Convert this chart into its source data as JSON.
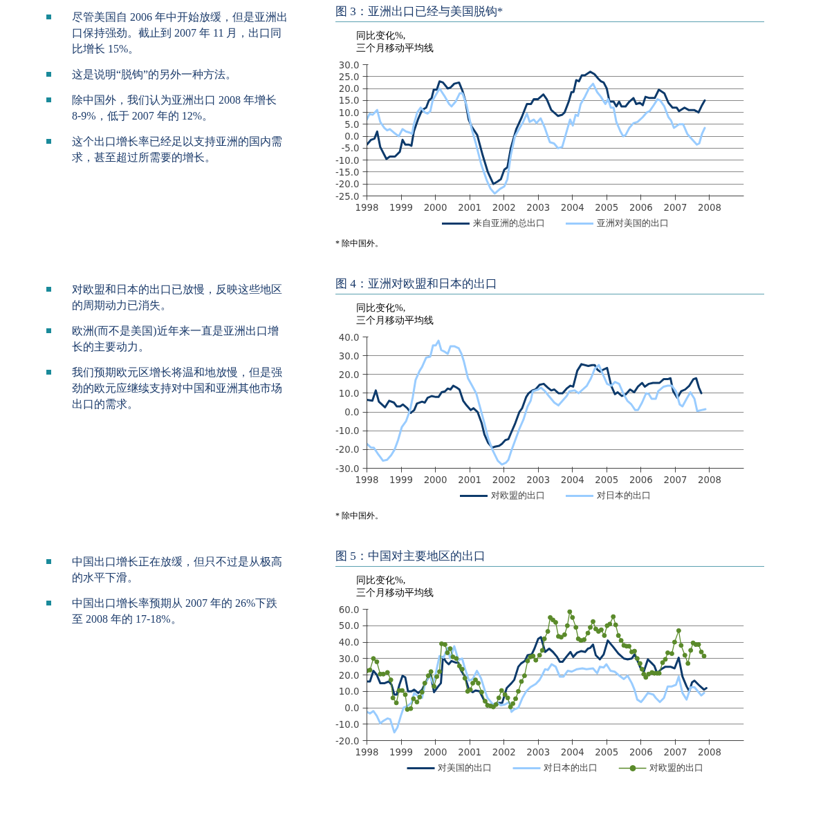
{
  "chart_data": [
    {
      "type": "line",
      "title": "图 3：亚洲出口已经与美国脱钩*",
      "subtitle": "同比变化%,\n三个月移动平均线",
      "annotations": [
        "尽管美国自 2006 年中开始放缓，但是亚洲出口保持强劲。截止到 2007 年 11 月，出口同比增长 15%。",
        "这是说明“脱钩”的另外一种方法。",
        "除中国外，我们认为亚洲出口 2008 年增长 8-9%，低于 2007 年的 12%。",
        "这个出口增长率已经足以支持亚洲的国内需求，甚至超过所需要的增长。",
        "* 除中国外。"
      ],
      "xlim": [
        1998,
        2009
      ],
      "xticks": [
        1998,
        1999,
        2000,
        2001,
        2002,
        2003,
        2004,
        2005,
        2006,
        2007,
        2008
      ],
      "ylim": [
        -25,
        30
      ],
      "yticks": [
        {
          "value": -25,
          "label": "-25.0"
        },
        {
          "value": -20,
          "label": "-20.0"
        },
        {
          "value": -15,
          "label": "-15.0"
        },
        {
          "value": -10,
          "label": "-10.0"
        },
        {
          "value": -5,
          "label": "-5.0"
        },
        {
          "value": 0,
          "label": "0.0"
        },
        {
          "value": 5,
          "label": "5.0"
        },
        {
          "value": 10,
          "label": "10.0"
        },
        {
          "value": 15,
          "label": "15.0"
        },
        {
          "value": 20,
          "label": "20.0"
        },
        {
          "value": 25,
          "label": "25.0"
        },
        {
          "value": 30,
          "label": "30.0"
        }
      ],
      "grid": "y",
      "legend": "bottom",
      "line_style": "solid",
      "marker": "none",
      "series": [
        {
          "name": "来自亚洲的总出口",
          "color": "#0d3a6b",
          "x": [
            1998.0,
            1998.12,
            1998.22,
            1998.3,
            1998.39,
            1998.57,
            1998.67,
            1998.82,
            1998.96,
            1999.04,
            1999.12,
            1999.22,
            1999.3,
            1999.37,
            1999.49,
            1999.61,
            1999.73,
            1999.81,
            1999.89,
            1999.95,
            2000.04,
            2000.12,
            2000.22,
            2000.36,
            2000.45,
            2000.55,
            2000.69,
            2000.79,
            2000.87,
            2000.97,
            2001.06,
            2001.22,
            2001.38,
            2001.53,
            2001.69,
            2001.81,
            2001.91,
            2002.01,
            2002.1,
            2002.2,
            2002.36,
            2002.52,
            2002.67,
            2002.79,
            2002.87,
            2002.99,
            2003.07,
            2003.15,
            2003.25,
            2003.38,
            2003.5,
            2003.58,
            2003.7,
            2003.77,
            2003.89,
            2003.97,
            2004.03,
            2004.11,
            2004.19,
            2004.27,
            2004.36,
            2004.52,
            2004.64,
            2004.76,
            2004.83,
            2004.91,
            2005.0,
            2005.08,
            2005.2,
            2005.28,
            2005.36,
            2005.43,
            2005.55,
            2005.66,
            2005.78,
            2005.86,
            2005.97,
            2006.05,
            2006.13,
            2006.25,
            2006.4,
            2006.52,
            2006.68,
            2006.8,
            2006.92,
            2007.04,
            2007.11,
            2007.27,
            2007.39,
            2007.55,
            2007.68,
            2007.78,
            2007.86
          ],
          "values": [
            -3.5,
            -1.5,
            -1,
            2,
            -4.5,
            -9.5,
            -8.5,
            -8.5,
            -6.5,
            -1.5,
            -3.5,
            -3.5,
            -4,
            2,
            7,
            11,
            12,
            15,
            16,
            19.5,
            19.5,
            23,
            22.5,
            20,
            20.5,
            22,
            22.5,
            19,
            15,
            7,
            4,
            0.5,
            -8,
            -15,
            -20,
            -19,
            -18,
            -14,
            -13,
            -5,
            3,
            8,
            13.5,
            13.5,
            15.5,
            15.5,
            16.5,
            17.5,
            15.5,
            11,
            9.5,
            8.5,
            9,
            10,
            14.5,
            18.5,
            18.5,
            23.5,
            23,
            25.5,
            25.5,
            27,
            26,
            24,
            23,
            22.5,
            20,
            14.5,
            14.5,
            12.5,
            14.5,
            12.5,
            12.5,
            14.5,
            16,
            13.5,
            14,
            13,
            16.5,
            16,
            16,
            19.5,
            18,
            14,
            12,
            12,
            10.5,
            12,
            11,
            11,
            10,
            13,
            15
          ]
        },
        {
          "name": "亚洲对美国的出口",
          "color": "#99ccff",
          "x": [
            1998.0,
            1998.08,
            1998.17,
            1998.3,
            1998.39,
            1998.51,
            1998.59,
            1998.67,
            1998.79,
            1998.93,
            1999.04,
            1999.14,
            1999.26,
            1999.32,
            1999.37,
            1999.47,
            1999.57,
            1999.69,
            1999.77,
            1999.85,
            1999.92,
            2000.12,
            2000.28,
            2000.4,
            2000.47,
            2000.59,
            2000.71,
            2000.79,
            2000.91,
            2001.06,
            2001.18,
            2001.34,
            2001.5,
            2001.61,
            2001.73,
            2001.89,
            2002.01,
            2002.1,
            2002.2,
            2002.32,
            2002.44,
            2002.56,
            2002.67,
            2002.75,
            2002.87,
            2002.95,
            2003.07,
            2003.18,
            2003.34,
            2003.46,
            2003.58,
            2003.7,
            2003.81,
            2003.93,
            2004.01,
            2004.09,
            2004.16,
            2004.24,
            2004.36,
            2004.48,
            2004.6,
            2004.72,
            2004.83,
            2004.96,
            2005.04,
            2005.12,
            2005.2,
            2005.28,
            2005.4,
            2005.48,
            2005.55,
            2005.66,
            2005.78,
            2005.9,
            2006.05,
            2006.17,
            2006.25,
            2006.37,
            2006.48,
            2006.56,
            2006.68,
            2006.8,
            2006.88,
            2006.96,
            2007.11,
            2007.23,
            2007.35,
            2007.47,
            2007.63,
            2007.7,
            2007.78,
            2007.86
          ],
          "values": [
            7,
            9.5,
            9,
            11,
            6,
            3.5,
            2.5,
            3,
            1.5,
            0,
            3,
            2,
            1.5,
            1,
            5,
            10,
            12,
            10,
            9.5,
            10.5,
            15,
            20,
            16.5,
            13.5,
            12.5,
            14.5,
            18,
            18,
            13,
            3,
            -3,
            -12,
            -18.5,
            -22,
            -24,
            -22,
            -21,
            -18,
            -8,
            0,
            3,
            6,
            9.5,
            6,
            7,
            5.5,
            7.5,
            4,
            -2.5,
            -3,
            -5,
            -4.5,
            1,
            7,
            4.5,
            9,
            8.5,
            13.5,
            16.5,
            20,
            22,
            18.5,
            16.5,
            13.5,
            15.5,
            12,
            12,
            6,
            2,
            0,
            0.5,
            3.5,
            5.5,
            6,
            8,
            10,
            10.5,
            13,
            15.5,
            15,
            12.5,
            8,
            6.5,
            3.5,
            5,
            5,
            1,
            -1,
            -3.5,
            -3,
            1,
            3.5
          ]
        }
      ]
    },
    {
      "type": "line",
      "title": "图 4：亚洲对欧盟和日本的出口",
      "subtitle": "同比变化%,\n三个月移动平均线",
      "annotations": [
        "对欧盟和日本的出口已放慢，反映这些地区的周期动力已消失。",
        "欧洲(而不是美国)近年来一直是亚洲出口增长的主要动力。",
        "我们预期欧元区增长将温和地放慢，但是强劲的欧元应继续支持对中国和亚洲其他市场出口的需求。",
        "* 除中国外。"
      ],
      "xlim": [
        1998,
        2009
      ],
      "xticks": [
        1998,
        1999,
        2000,
        2001,
        2002,
        2003,
        2004,
        2005,
        2006,
        2007,
        2008
      ],
      "ylim": [
        -30,
        40
      ],
      "yticks": [
        {
          "value": -30,
          "label": "-30.0"
        },
        {
          "value": -20,
          "label": "-20.0"
        },
        {
          "value": -10,
          "label": "-10.0"
        },
        {
          "value": 0,
          "label": "0.0"
        },
        {
          "value": 10,
          "label": "10.0"
        },
        {
          "value": 20,
          "label": "20.0"
        },
        {
          "value": 30,
          "label": "30.0"
        },
        {
          "value": 40,
          "label": "40.0"
        }
      ],
      "grid": "y",
      "legend": "bottom",
      "line_style": "solid",
      "marker": "none",
      "series": [
        {
          "name": "对欧盟的出口",
          "color": "#0d3a6b",
          "x": [
            1998.0,
            1998.16,
            1998.26,
            1998.35,
            1998.53,
            1998.65,
            1998.79,
            1998.87,
            1998.97,
            1999.05,
            1999.18,
            1999.28,
            1999.38,
            1999.46,
            1999.61,
            1999.69,
            1999.77,
            1999.89,
            2000.01,
            2000.09,
            2000.18,
            2000.28,
            2000.36,
            2000.44,
            2000.52,
            2000.62,
            2000.7,
            2000.81,
            2000.91,
            2001.03,
            2001.11,
            2001.23,
            2001.35,
            2001.43,
            2001.54,
            2001.66,
            2001.74,
            2001.86,
            2001.94,
            2002.04,
            2002.13,
            2002.2,
            2002.33,
            2002.45,
            2002.53,
            2002.65,
            2002.72,
            2002.83,
            2002.92,
            2003.04,
            2003.16,
            2003.28,
            2003.38,
            2003.47,
            2003.59,
            2003.71,
            2003.83,
            2003.94,
            2004.02,
            2004.14,
            2004.26,
            2004.46,
            2004.57,
            2004.65,
            2004.73,
            2004.81,
            2004.89,
            2005.01,
            2005.13,
            2005.24,
            2005.32,
            2005.44,
            2005.56,
            2005.68,
            2005.8,
            2005.91,
            2006.03,
            2006.11,
            2006.23,
            2006.35,
            2006.54,
            2006.66,
            2006.78,
            2006.86,
            2006.94,
            2007.06,
            2007.17,
            2007.29,
            2007.41,
            2007.53,
            2007.61,
            2007.69,
            2007.76
          ],
          "values": [
            6.5,
            6,
            11.5,
            5.5,
            2.5,
            6,
            5,
            3,
            3,
            4,
            2,
            -0.5,
            1,
            4.5,
            5.5,
            5,
            7.5,
            8.5,
            8,
            8,
            10.5,
            11,
            12.5,
            12,
            14,
            13,
            12,
            6,
            3.5,
            1,
            2,
            0,
            -6,
            -12,
            -16.5,
            -19,
            -18.5,
            -18,
            -17,
            -15,
            -14.5,
            -11.5,
            -6,
            0,
            2,
            8,
            10,
            11.5,
            12,
            14.5,
            15,
            13,
            11.5,
            12,
            10,
            10,
            12.5,
            14,
            13.5,
            22,
            25.5,
            24.5,
            25,
            25,
            22.5,
            21.5,
            22.5,
            23.5,
            14,
            9.5,
            10.5,
            8.5,
            9.5,
            12,
            10.5,
            13.5,
            15.5,
            13.5,
            15,
            15.5,
            15.5,
            17.5,
            17.5,
            18,
            11,
            7.5,
            11,
            12,
            14,
            17.5,
            18,
            13,
            10
          ]
        },
        {
          "name": "对日本的出口",
          "color": "#99ccff",
          "x": [
            1998.0,
            1998.12,
            1998.2,
            1998.31,
            1998.39,
            1998.47,
            1998.59,
            1998.71,
            1998.81,
            1998.91,
            1999.02,
            1999.14,
            1999.26,
            1999.34,
            1999.42,
            1999.54,
            1999.61,
            1999.73,
            1999.85,
            1999.93,
            2000.01,
            2000.09,
            2000.17,
            2000.28,
            2000.36,
            2000.44,
            2000.56,
            2000.68,
            2000.76,
            2000.83,
            2000.95,
            2001.07,
            2001.19,
            2001.31,
            2001.43,
            2001.54,
            2001.66,
            2001.82,
            2001.94,
            2002.06,
            2002.13,
            2002.21,
            2002.33,
            2002.45,
            2002.57,
            2002.69,
            2002.78,
            2002.84,
            2003.0,
            2003.08,
            2003.2,
            2003.31,
            2003.47,
            2003.59,
            2003.71,
            2003.83,
            2003.91,
            2004.06,
            2004.18,
            2004.3,
            2004.42,
            2004.54,
            2004.65,
            2004.77,
            2004.89,
            2005.01,
            2005.13,
            2005.24,
            2005.36,
            2005.48,
            2005.6,
            2005.72,
            2005.83,
            2005.91,
            2006.03,
            2006.15,
            2006.23,
            2006.31,
            2006.43,
            2006.5,
            2006.66,
            2006.78,
            2006.9,
            2007.02,
            2007.13,
            2007.21,
            2007.33,
            2007.44,
            2007.56,
            2007.64,
            2007.76,
            2007.88
          ],
          "values": [
            -17,
            -19,
            -19,
            -22,
            -24,
            -26,
            -25.5,
            -23,
            -20,
            -15,
            -8,
            -5,
            1,
            8,
            17,
            22,
            24,
            29,
            29.5,
            35.5,
            35.5,
            38,
            33,
            32,
            31,
            35,
            35,
            34,
            31,
            27,
            18,
            14,
            10,
            2,
            -6,
            -14,
            -20,
            -26,
            -28,
            -27,
            -25.5,
            -21,
            -15,
            -9,
            -4,
            3,
            6,
            11,
            12,
            13,
            11,
            8.5,
            5,
            3.5,
            6,
            8.5,
            11,
            11.5,
            10,
            12,
            14,
            18,
            23,
            25,
            20,
            15,
            14,
            16,
            15,
            10,
            6,
            4,
            1,
            1,
            5,
            10,
            9.5,
            7,
            7,
            11,
            13.5,
            14,
            14,
            11,
            4,
            3,
            7,
            10.5,
            7,
            0.5,
            1,
            1.5
          ]
        }
      ]
    },
    {
      "type": "line",
      "title": "图 5：中国对主要地区的出口",
      "subtitle": "同比变化%,\n三个月移动平均线",
      "annotations": [
        "中国出口增长正在放缓，但只不过是从极高的水平下滑。",
        "中国出口增长率预期从 2007 年的 26%下跌至 2008 年的 17-18%。"
      ],
      "xlim": [
        1998,
        2009
      ],
      "xticks": [
        1998,
        1999,
        2000,
        2001,
        2002,
        2003,
        2004,
        2005,
        2006,
        2007,
        2008
      ],
      "ylim": [
        -20,
        60
      ],
      "yticks": [
        {
          "value": -20,
          "label": "-20.0"
        },
        {
          "value": -10,
          "label": "-10.0"
        },
        {
          "value": 0,
          "label": "0.0"
        },
        {
          "value": 10,
          "label": "10.0"
        },
        {
          "value": 20,
          "label": "20.0"
        },
        {
          "value": 30,
          "label": "30.0"
        },
        {
          "value": 40,
          "label": "40.0"
        },
        {
          "value": 50,
          "label": "50.0"
        },
        {
          "value": 60,
          "label": "60.0"
        }
      ],
      "grid": "y",
      "legend": "bottom",
      "line_style": "solid",
      "marker": "none",
      "series": [
        {
          "name": "对美国的出口",
          "color": "#0d3a6b",
          "x": [
            1998.0,
            1998.09,
            1998.19,
            1998.29,
            1998.39,
            1998.52,
            1998.64,
            1998.72,
            1998.8,
            1998.87,
            1998.95,
            1999.04,
            1999.12,
            1999.2,
            1999.3,
            1999.38,
            1999.5,
            1999.61,
            1999.73,
            1999.85,
            1999.96,
            2000.08,
            2000.16,
            2000.22,
            2000.31,
            2000.39,
            2000.47,
            2000.59,
            2000.67,
            2000.74,
            2000.86,
            2000.98,
            2001.09,
            2001.17,
            2001.29,
            2001.41,
            2001.52,
            2001.68,
            2001.83,
            2001.95,
            2002.08,
            2002.22,
            2002.3,
            2002.42,
            2002.5,
            2002.61,
            2002.69,
            2002.81,
            2002.89,
            2003.0,
            2003.08,
            2003.2,
            2003.32,
            2003.43,
            2003.55,
            2003.63,
            2003.71,
            2003.82,
            2003.94,
            2004.02,
            2004.13,
            2004.25,
            2004.37,
            2004.45,
            2004.52,
            2004.6,
            2004.68,
            2004.8,
            2004.91,
            2005.03,
            2005.19,
            2005.34,
            2005.5,
            2005.61,
            2005.73,
            2005.81,
            2005.89,
            2006.0,
            2006.08,
            2006.2,
            2006.32,
            2006.39,
            2006.47,
            2006.59,
            2006.71,
            2006.86,
            2006.98,
            2007.1,
            2007.21,
            2007.33,
            2007.41,
            2007.49,
            2007.56,
            2007.68,
            2007.76,
            2007.84,
            2007.91
          ],
          "values": [
            16,
            16,
            22.5,
            20,
            15,
            15,
            16,
            14,
            8,
            8,
            14,
            19.5,
            18.5,
            10,
            10,
            11,
            9,
            11,
            16,
            21,
            9.5,
            13,
            15,
            31,
            28,
            26.5,
            28.5,
            27.5,
            27.5,
            23,
            19,
            11,
            9.5,
            10.5,
            10,
            5,
            2,
            1.5,
            3,
            3,
            12,
            15,
            17,
            25,
            27,
            28.5,
            32,
            32.5,
            36,
            42,
            43,
            34,
            36,
            34,
            31,
            28,
            28,
            31,
            34,
            31,
            33.5,
            34.5,
            34,
            36,
            36.5,
            38.5,
            32,
            29.5,
            32.5,
            41,
            37,
            33,
            30,
            29.5,
            30,
            32.5,
            29,
            23.5,
            22,
            29.5,
            27,
            25.5,
            21,
            23.5,
            25,
            25,
            24,
            30.5,
            19,
            13,
            10,
            15.5,
            16.5,
            14,
            12.5,
            11,
            12
          ]
        },
        {
          "name": "对日本的出口",
          "color": "#99ccff",
          "x": [
            1998.0,
            1998.09,
            1998.19,
            1998.29,
            1998.39,
            1998.48,
            1998.6,
            1998.68,
            1998.8,
            1998.89,
            1998.99,
            1999.07,
            1999.18,
            1999.3,
            1999.38,
            1999.5,
            1999.61,
            1999.69,
            1999.81,
            1999.93,
            2000.0,
            2000.12,
            2000.24,
            2000.35,
            2000.43,
            2000.55,
            2000.67,
            2000.78,
            2000.86,
            2000.98,
            2001.09,
            2001.21,
            2001.33,
            2001.45,
            2001.52,
            2001.68,
            2001.8,
            2001.91,
            2002.03,
            2002.15,
            2002.22,
            2002.3,
            2002.42,
            2002.54,
            2002.65,
            2002.77,
            2002.93,
            2003.04,
            2003.12,
            2003.2,
            2003.28,
            2003.39,
            2003.51,
            2003.63,
            2003.74,
            2003.86,
            2003.98,
            2004.13,
            2004.29,
            2004.41,
            2004.6,
            2004.72,
            2004.8,
            2004.91,
            2004.99,
            2005.11,
            2005.23,
            2005.34,
            2005.5,
            2005.61,
            2005.73,
            2005.81,
            2005.89,
            2006.0,
            2006.08,
            2006.2,
            2006.36,
            2006.43,
            2006.55,
            2006.67,
            2006.78,
            2006.9,
            2007.02,
            2007.1,
            2007.21,
            2007.33,
            2007.45,
            2007.56,
            2007.68,
            2007.76,
            2007.84
          ],
          "values": [
            -2.5,
            -3.5,
            -2,
            -5,
            -9.5,
            -8,
            -6.5,
            -7,
            -15,
            -12,
            -5,
            0,
            1,
            3,
            9,
            7,
            6,
            14,
            20,
            15,
            20,
            31.5,
            30.5,
            36.5,
            30,
            37.5,
            29,
            30,
            24,
            16.5,
            17.5,
            22.5,
            18,
            10,
            6,
            2,
            3,
            1.5,
            2,
            3.5,
            -2.5,
            -1,
            0,
            6,
            10,
            12.5,
            14.5,
            17,
            20,
            23.5,
            23,
            26.5,
            25,
            19,
            19,
            22.5,
            22,
            23.5,
            24,
            23.5,
            24,
            21,
            25,
            24.5,
            26.5,
            22.5,
            22,
            20,
            17.5,
            19.5,
            15,
            11,
            5,
            3.5,
            5.5,
            9,
            8,
            6,
            3.5,
            6,
            13,
            13,
            14,
            19,
            9,
            5,
            12.5,
            12.5,
            9.5,
            7.5,
            9
          ]
        },
        {
          "name": "对欧盟的出口",
          "color": "#5a8a2a",
          "marker": "circle",
          "x": [
            1998.0,
            1998.09,
            1998.19,
            1998.29,
            1998.39,
            1998.48,
            1998.6,
            1998.7,
            1998.76,
            1998.86,
            1998.94,
            1999.03,
            1999.12,
            1999.18,
            1999.28,
            1999.36,
            1999.46,
            1999.54,
            1999.61,
            1999.69,
            1999.79,
            1999.87,
            1999.96,
            2000.04,
            2000.12,
            2000.18,
            2000.28,
            2000.35,
            2000.43,
            2000.51,
            2000.61,
            2000.7,
            2000.78,
            2000.86,
            2000.94,
            2001.02,
            2001.09,
            2001.17,
            2001.25,
            2001.35,
            2001.45,
            2001.52,
            2001.62,
            2001.69,
            2001.77,
            2001.85,
            2001.93,
            2002.03,
            2002.11,
            2002.19,
            2002.26,
            2002.34,
            2002.42,
            2002.51,
            2002.6,
            2002.69,
            2002.77,
            2002.85,
            2002.93,
            2003.04,
            2003.12,
            2003.18,
            2003.28,
            2003.35,
            2003.43,
            2003.51,
            2003.59,
            2003.67,
            2003.77,
            2003.85,
            2003.92,
            2004.0,
            2004.1,
            2004.17,
            2004.25,
            2004.34,
            2004.45,
            2004.52,
            2004.6,
            2004.68,
            2004.76,
            2004.84,
            2004.93,
            2005.01,
            2005.09,
            2005.19,
            2005.26,
            2005.34,
            2005.42,
            2005.5,
            2005.58,
            2005.65,
            2005.73,
            2005.81,
            2005.89,
            2005.97,
            2006.03,
            2006.08,
            2006.14,
            2006.22,
            2006.32,
            2006.39,
            2006.47,
            2006.53,
            2006.63,
            2006.71,
            2006.78,
            2006.9,
            2006.98,
            2007.1,
            2007.17,
            2007.28,
            2007.37,
            2007.45,
            2007.52,
            2007.6,
            2007.68,
            2007.76,
            2007.84
          ],
          "values": [
            22.5,
            23,
            30,
            28,
            20.5,
            20.5,
            21.5,
            17,
            6,
            3,
            10.5,
            10.5,
            8,
            -1,
            -0.5,
            5.5,
            3.5,
            6.5,
            9.5,
            15,
            19.5,
            22,
            13,
            19,
            22,
            39,
            38.5,
            33.5,
            36,
            31,
            30,
            25.5,
            23.5,
            18,
            10,
            11,
            15,
            17,
            15,
            9.5,
            4,
            1.5,
            1,
            0.5,
            2,
            6,
            10.5,
            8,
            6,
            0.5,
            2.5,
            5.5,
            10,
            16,
            19.5,
            28.5,
            31,
            31.5,
            29,
            32,
            35,
            42,
            46.5,
            55,
            53.5,
            52,
            43.5,
            43,
            44.5,
            50,
            58.5,
            55,
            49,
            42,
            41,
            41.5,
            45.5,
            49,
            52.5,
            48,
            46.5,
            47.5,
            44,
            50,
            51,
            55.5,
            50.5,
            44,
            41,
            38,
            37.5,
            37.5,
            34,
            34.5,
            30,
            27,
            23.5,
            20.5,
            18.5,
            20.5,
            21.5,
            21,
            21,
            21,
            27.5,
            29.5,
            33.5,
            33,
            40,
            47,
            38,
            32,
            27,
            35,
            39.5,
            38.5,
            38.5,
            34,
            31.5
          ]
        }
      ]
    }
  ]
}
